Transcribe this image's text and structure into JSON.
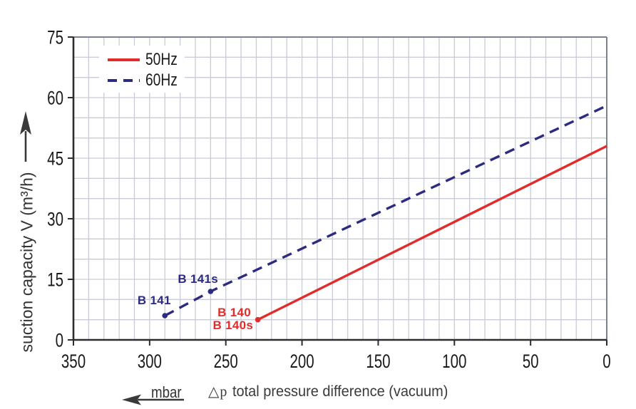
{
  "chart_data": {
    "type": "line",
    "title": "",
    "background": "#ffffff",
    "grid": true,
    "x_axis": {
      "symbol": "△p",
      "label": "total pressure difference (vacuum)",
      "unit": "mbar",
      "range": [
        350,
        0
      ],
      "direction": "reversed",
      "ticks": [
        350,
        300,
        250,
        200,
        150,
        100,
        50,
        0
      ],
      "minor_grid_step": 10
    },
    "y_axis": {
      "label": "suction capacity V (m³/h)",
      "range": [
        0,
        75
      ],
      "ticks": [
        0,
        15,
        30,
        45,
        60,
        75
      ],
      "minor_grid_step": 5
    },
    "legend": {
      "position": "top-left",
      "entries": [
        {
          "label": "50Hz",
          "color": "#e12c2c",
          "style": "solid"
        },
        {
          "label": "60Hz",
          "color": "#2d2b80",
          "style": "dashed"
        }
      ]
    },
    "series": [
      {
        "name": "50Hz",
        "color": "#e12c2c",
        "style": "solid",
        "points": [
          [
            229,
            5
          ],
          [
            0,
            48
          ]
        ],
        "markers": [
          [
            229,
            5
          ]
        ]
      },
      {
        "name": "60Hz",
        "color": "#2d2b80",
        "style": "dashed",
        "points": [
          [
            290,
            6
          ],
          [
            260,
            12
          ],
          [
            0,
            58
          ]
        ],
        "markers": [
          [
            290,
            6
          ],
          [
            260,
            12
          ]
        ]
      }
    ],
    "point_labels": [
      {
        "text": "B 141",
        "color": "#2d2b80",
        "at": [
          286,
          8.9
        ],
        "anchor": "end"
      },
      {
        "text": "B 141s",
        "color": "#2d2b80",
        "at": [
          255,
          14.2
        ],
        "anchor": "end"
      },
      {
        "text": "B 140",
        "color": "#e12c2c",
        "at": [
          233.5,
          5.9
        ],
        "anchor": "end"
      },
      {
        "text": "B 140s",
        "color": "#e12c2c",
        "at": [
          232,
          2.6
        ],
        "anchor": "end"
      }
    ],
    "colors": {
      "grid": "#c9ccd6",
      "axis": "#2d2d2d",
      "outer_border": "#7a8190",
      "tick_text": "#1a1a1a",
      "arrow": "#3a3a3a"
    }
  }
}
